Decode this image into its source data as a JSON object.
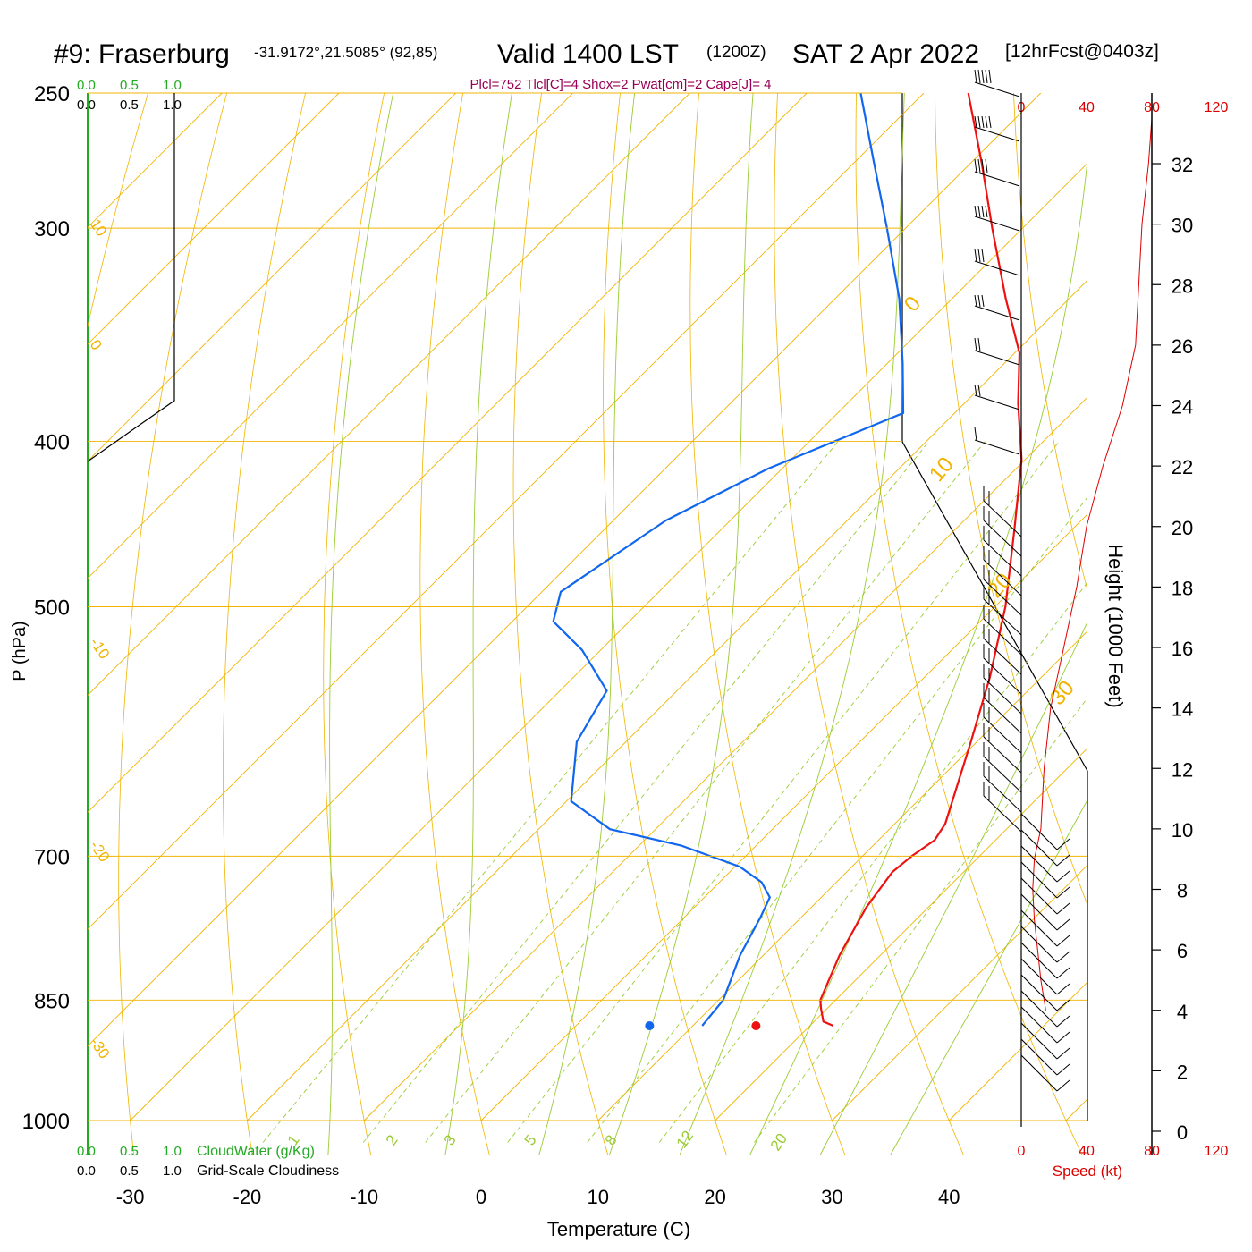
{
  "header": {
    "station": "#9: Fraserburg",
    "coords": "-31.9172°,21.5085° (92,85)",
    "valid": "Valid 1400 LST",
    "utc": "(1200Z)",
    "date": "SAT 2 Apr 2022",
    "fcst": "[12hrFcst@0403z]",
    "indices": "Plcl=752 Tlcl[C]=4 Shox=2 Pwat[cm]=2 Cape[J]= 4"
  },
  "colors": {
    "temperature": "#ee1111",
    "dewpoint": "#1166ee",
    "isobar_isotherm": "#f0b400",
    "mixing_ratio": "#99cc33",
    "cloud": "#22aa22",
    "speed": "#dd0000"
  },
  "chart_data": {
    "type": "line",
    "subtype": "skew-t log-p",
    "xlabel": "Temperature (C)",
    "ylabel": "P (hPa)",
    "x_ticks": [
      -30,
      -20,
      -10,
      0,
      10,
      20,
      30,
      40
    ],
    "pressure_ticks": [
      250,
      300,
      400,
      500,
      700,
      850,
      1000
    ],
    "ylim": [
      1000,
      250
    ],
    "isotherm_labels": [
      "10",
      "0",
      "-10",
      "-20",
      "-30",
      "0",
      "10",
      "20",
      "30"
    ],
    "mixing_ratio_labels": [
      "1",
      "2",
      "3",
      "5",
      "8",
      "12",
      "20"
    ],
    "series": [
      {
        "name": "",
        "role": "temperature",
        "points": [
          {
            "p": 880,
            "t": 22.0
          },
          {
            "p": 875,
            "t": 20.8
          },
          {
            "p": 860,
            "t": 19.5
          },
          {
            "p": 850,
            "t": 18.7
          },
          {
            "p": 800,
            "t": 16.5
          },
          {
            "p": 750,
            "t": 14.7
          },
          {
            "p": 715,
            "t": 13.9
          },
          {
            "p": 700,
            "t": 14.2
          },
          {
            "p": 685,
            "t": 14.8
          },
          {
            "p": 670,
            "t": 14.3
          },
          {
            "p": 600,
            "t": 9.5
          },
          {
            "p": 550,
            "t": 5.6
          },
          {
            "p": 500,
            "t": 0.9
          },
          {
            "p": 450,
            "t": -5.0
          },
          {
            "p": 410,
            "t": -10.3
          },
          {
            "p": 380,
            "t": -15.4
          },
          {
            "p": 355,
            "t": -19.6
          },
          {
            "p": 330,
            "t": -25.4
          },
          {
            "p": 300,
            "t": -32.6
          },
          {
            "p": 275,
            "t": -39.0
          },
          {
            "p": 250,
            "t": -46.2
          }
        ]
      },
      {
        "name": "",
        "role": "dewpoint",
        "points": [
          {
            "p": 880,
            "t": 10.8
          },
          {
            "p": 850,
            "t": 10.4
          },
          {
            "p": 800,
            "t": 8.0
          },
          {
            "p": 760,
            "t": 6.5
          },
          {
            "p": 740,
            "t": 5.6
          },
          {
            "p": 725,
            "t": 3.6
          },
          {
            "p": 710,
            "t": 0.4
          },
          {
            "p": 690,
            "t": -6.4
          },
          {
            "p": 675,
            "t": -13.9
          },
          {
            "p": 650,
            "t": -19.6
          },
          {
            "p": 600,
            "t": -24.2
          },
          {
            "p": 560,
            "t": -26.0
          },
          {
            "p": 530,
            "t": -31.6
          },
          {
            "p": 510,
            "t": -36.5
          },
          {
            "p": 490,
            "t": -38.4
          },
          {
            "p": 445,
            "t": -35.5
          },
          {
            "p": 415,
            "t": -31.2
          },
          {
            "p": 385,
            "t": -24.4
          },
          {
            "p": 360,
            "t": -28.7
          },
          {
            "p": 330,
            "t": -34.5
          },
          {
            "p": 300,
            "t": -41.6
          },
          {
            "p": 275,
            "t": -48.2
          },
          {
            "p": 250,
            "t": -55.4
          }
        ]
      }
    ],
    "surface_temperature_c": 23.5,
    "surface_dewpoint_c": 14.4,
    "cloud_axes": {
      "cloudwater_label": "CloudWater (g/Kg)",
      "cloudiness_label": "Grid-Scale Cloudiness",
      "ticks": [
        "0.0",
        "0.5",
        "1.0"
      ]
    },
    "speed_axis": {
      "label": "Speed (kt)",
      "ticks": [
        "0",
        "40",
        "80",
        "120"
      ]
    },
    "height_axis": {
      "label": "Height (1000 Feet)",
      "ticks": [
        0,
        2,
        4,
        6,
        8,
        10,
        12,
        14,
        16,
        18,
        20,
        22,
        24,
        26,
        28,
        30,
        32
      ]
    },
    "wind_speed_profile": [
      {
        "h": 4,
        "kt": 15
      },
      {
        "h": 5,
        "kt": 12
      },
      {
        "h": 6,
        "kt": 10
      },
      {
        "h": 7,
        "kt": 8
      },
      {
        "h": 8,
        "kt": 7
      },
      {
        "h": 9,
        "kt": 8
      },
      {
        "h": 10,
        "kt": 12
      },
      {
        "h": 12,
        "kt": 14
      },
      {
        "h": 14,
        "kt": 18
      },
      {
        "h": 16,
        "kt": 26
      },
      {
        "h": 18,
        "kt": 34
      },
      {
        "h": 20,
        "kt": 40
      },
      {
        "h": 22,
        "kt": 50
      },
      {
        "h": 24,
        "kt": 62
      },
      {
        "h": 26,
        "kt": 70
      },
      {
        "h": 28,
        "kt": 72
      },
      {
        "h": 30,
        "kt": 74
      },
      {
        "h": 32,
        "kt": 78
      }
    ]
  }
}
